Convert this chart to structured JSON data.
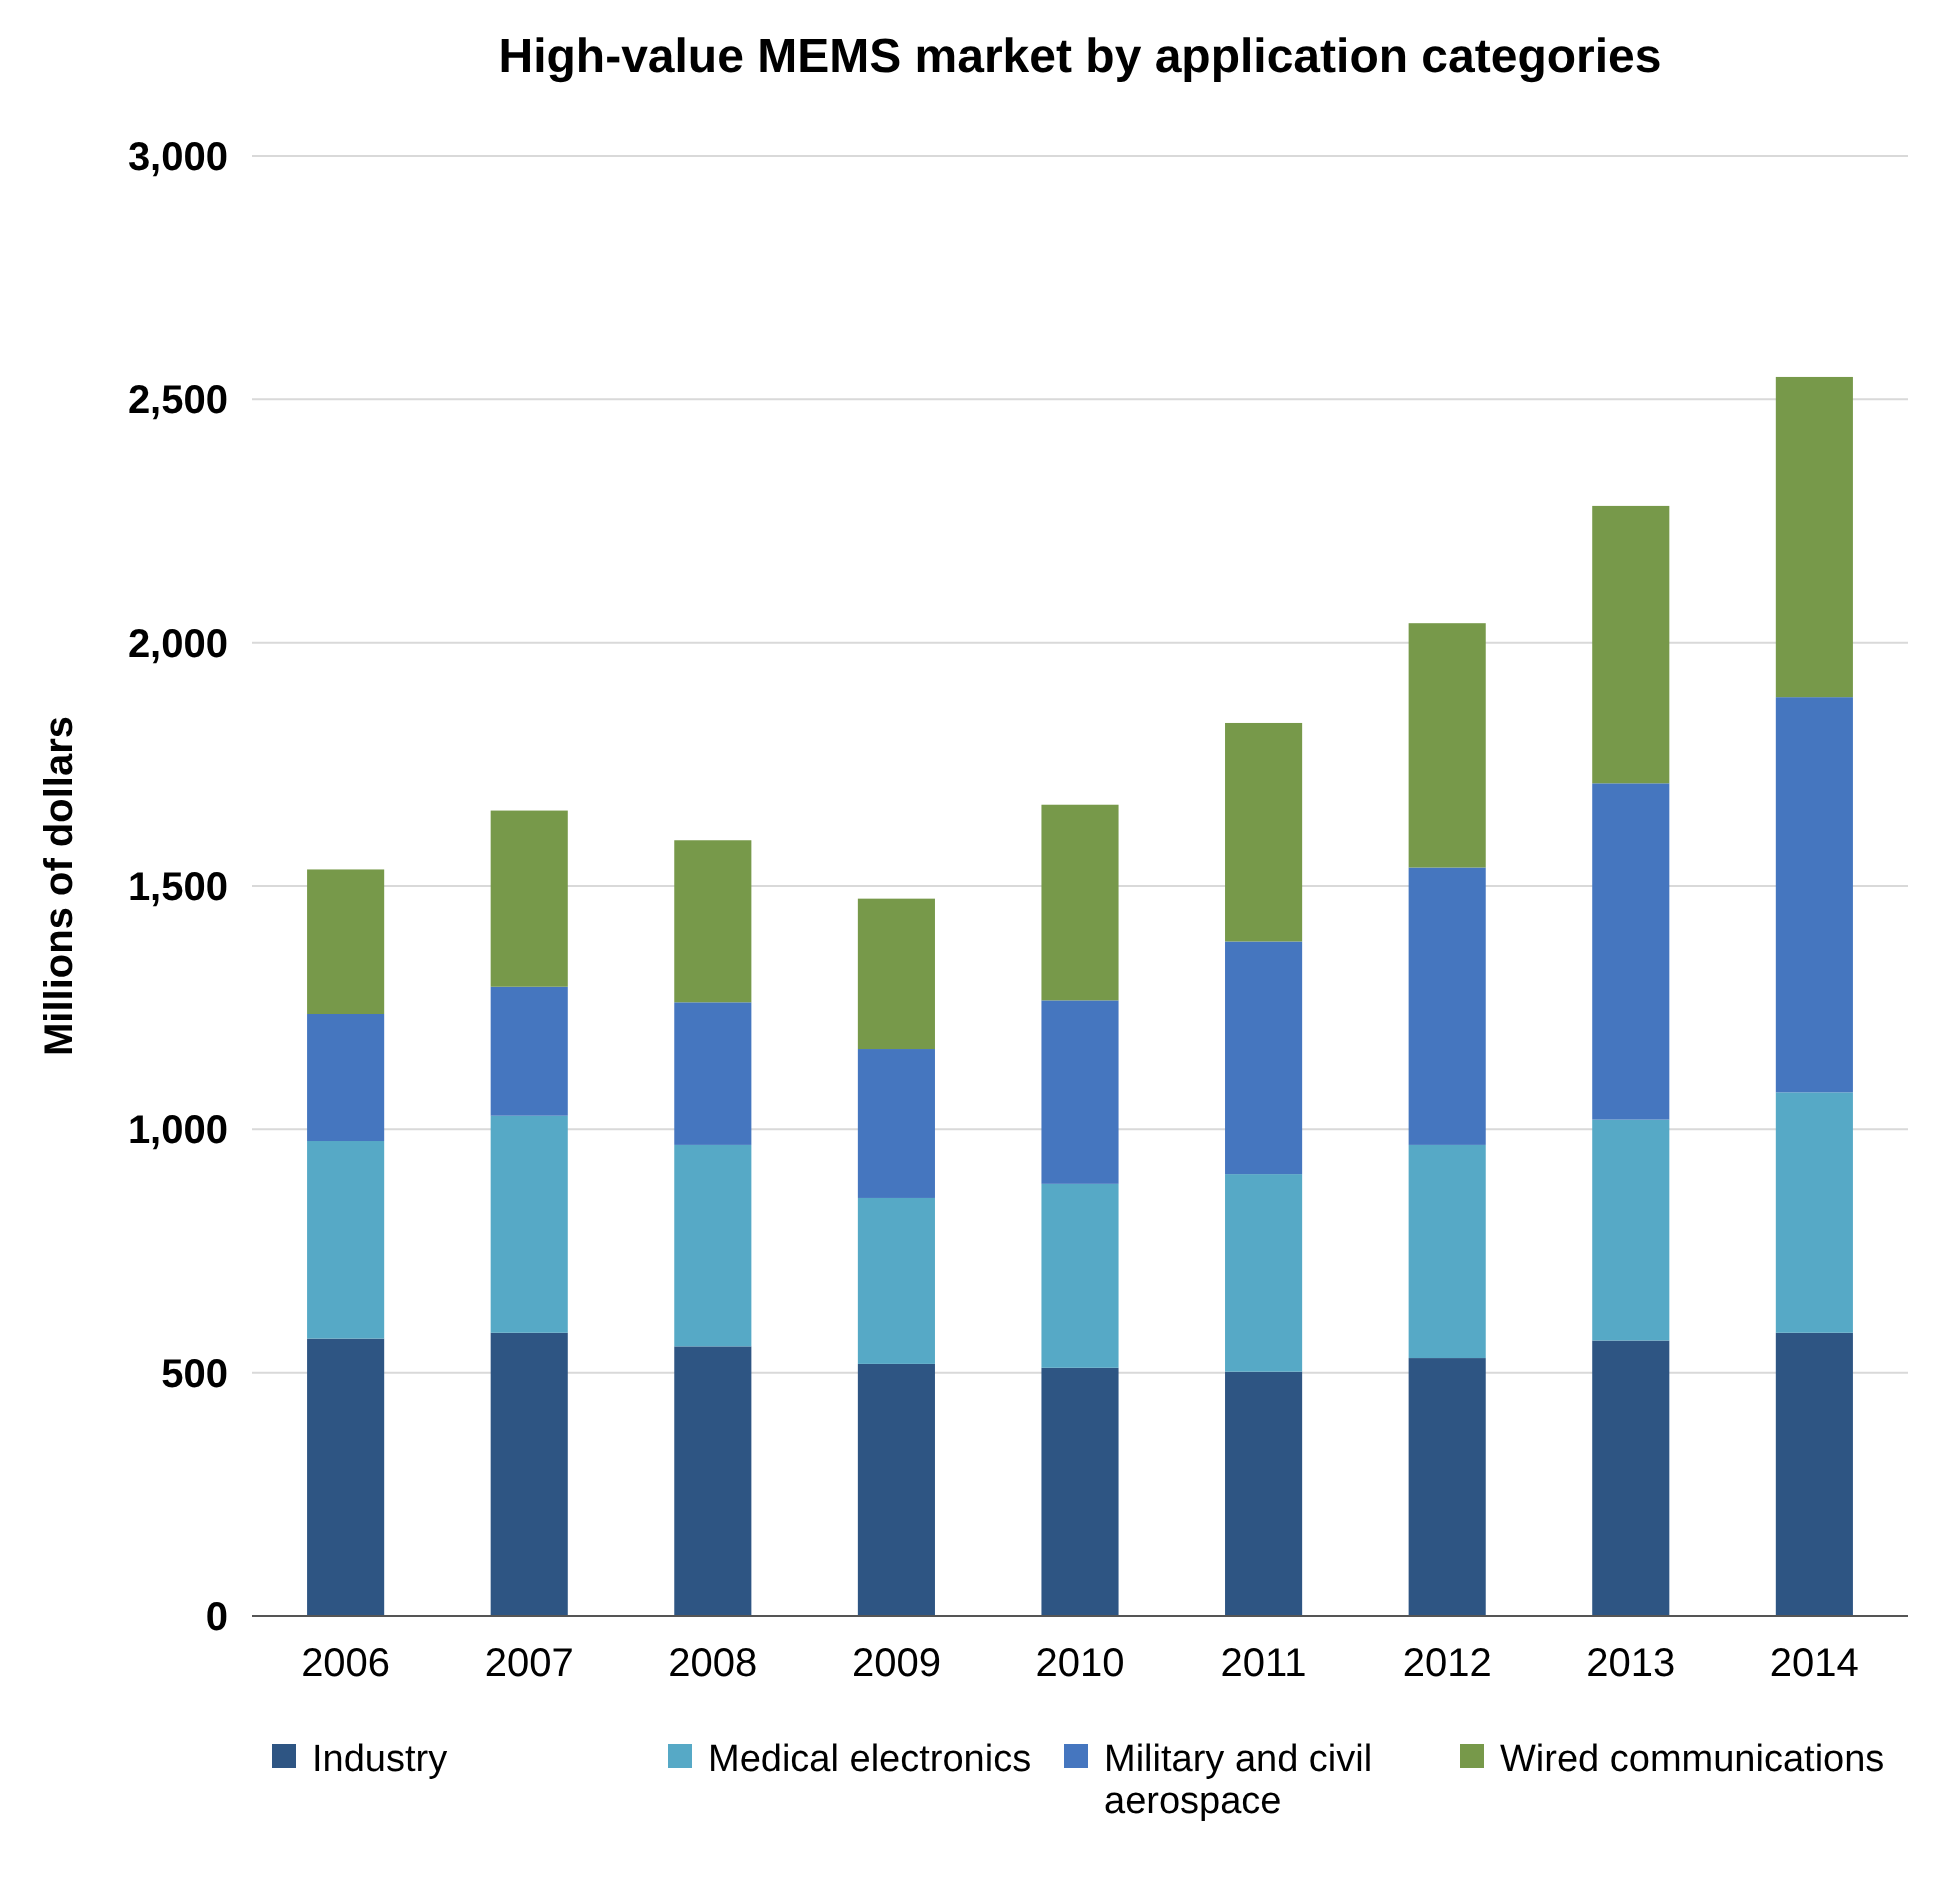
{
  "chart_data": {
    "type": "bar",
    "title": "High-value MEMS market by application categories",
    "ylabel": "Millions of dollars",
    "categories": [
      "2006",
      "2007",
      "2008",
      "2009",
      "2010",
      "2011",
      "2012",
      "2013",
      "2014"
    ],
    "stacked": true,
    "series": [
      {
        "name": "Industry",
        "color": "#2e5583",
        "values": [
          570,
          582,
          554,
          518,
          510,
          502,
          530,
          566,
          582
        ]
      },
      {
        "name": "Medical electronics",
        "color": "#56a9c6",
        "values": [
          406,
          446,
          414,
          341,
          378,
          406,
          438,
          454,
          494
        ]
      },
      {
        "name": "Military and civil aerospace",
        "color": "#4576bf",
        "values": [
          261,
          265,
          293,
          306,
          377,
          478,
          570,
          691,
          812
        ]
      },
      {
        "name": "Wired communications",
        "color": "#77994a",
        "values": [
          297,
          362,
          333,
          309,
          402,
          449,
          502,
          570,
          658
        ]
      }
    ],
    "ylim": [
      0,
      3000
    ],
    "yticks": [
      0,
      500,
      {
        "value": 1000,
        "label": "1,000"
      },
      {
        "value": 1500,
        "label": "1,500"
      },
      {
        "value": 2000,
        "label": "2,000"
      },
      {
        "value": 2500,
        "label": "2,500"
      },
      {
        "value": 3000,
        "label": "3,000"
      }
    ],
    "grid": "y",
    "legend": "bottom"
  }
}
